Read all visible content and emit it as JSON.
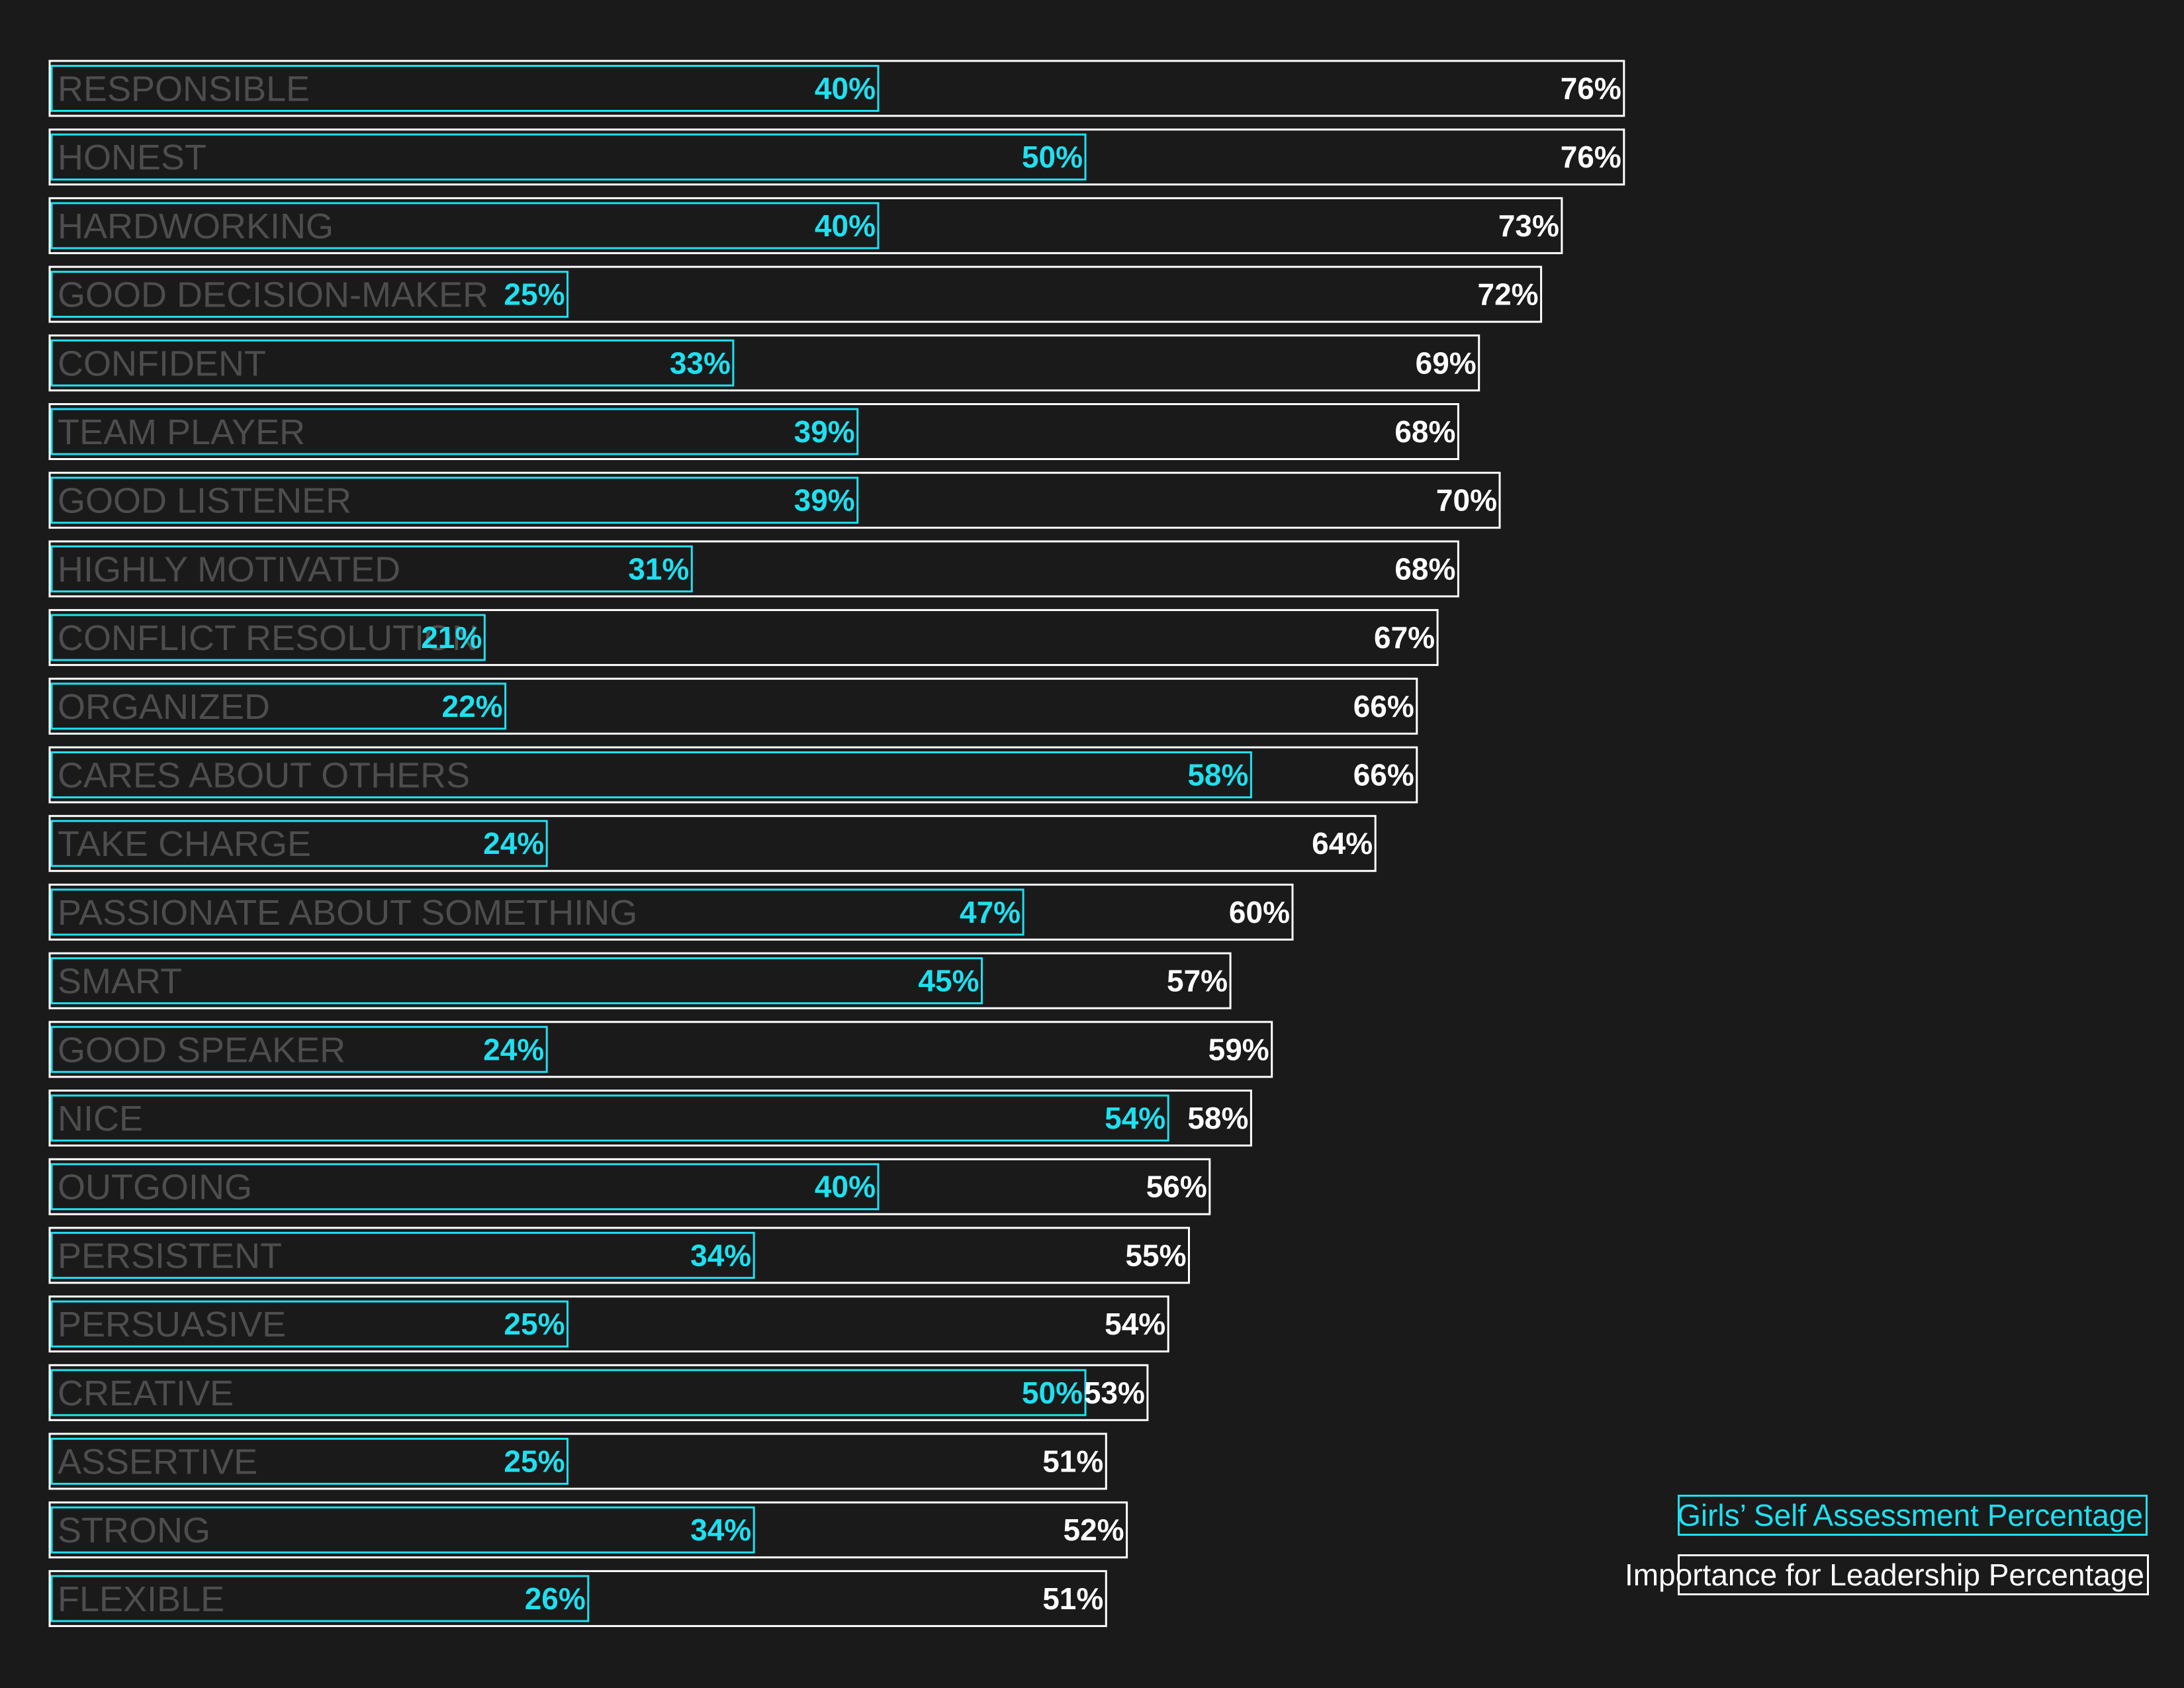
{
  "chart_data": {
    "type": "bar",
    "categories": [
      "RESPONSIBLE",
      "HONEST",
      "HARDWORKING",
      "GOOD DECISION-MAKER",
      "CONFIDENT",
      "TEAM PLAYER",
      "GOOD LISTENER",
      "HIGHLY MOTIVATED",
      "CONFLICT RESOLUTION",
      "ORGANIZED",
      "CARES ABOUT OTHERS",
      "TAKE CHARGE",
      "PASSIONATE ABOUT SOMETHING",
      "SMART",
      "GOOD SPEAKER",
      "NICE",
      "OUTGOING",
      "PERSISTENT",
      "PERSUASIVE",
      "CREATIVE",
      "ASSERTIVE",
      "STRONG",
      "FLEXIBLE"
    ],
    "series": [
      {
        "name": "Importance for Leadership Percentage",
        "color": "#ffffff",
        "values": [
          76,
          76,
          73,
          72,
          69,
          68,
          70,
          68,
          67,
          66,
          66,
          64,
          60,
          57,
          59,
          58,
          56,
          55,
          54,
          53,
          51,
          52,
          51
        ]
      },
      {
        "name": "Girls’ Self Assessment Percentage",
        "color": "#1ee0f0",
        "values": [
          40,
          50,
          40,
          25,
          33,
          39,
          39,
          31,
          21,
          22,
          58,
          24,
          47,
          45,
          24,
          54,
          40,
          34,
          25,
          50,
          25,
          34,
          26
        ]
      }
    ],
    "value_suffix": "%",
    "grid": false,
    "legend_position": "bottom-right",
    "title": "",
    "xlabel": "",
    "ylabel": ""
  },
  "legend": {
    "self_label": "Girls’ Self Assessment Percentage",
    "importance_label": "Importance for Leadership Percentage"
  },
  "colors": {
    "background": "#1a1a1a",
    "self": "#1ee0f0",
    "importance": "#ffffff",
    "category_text": "#4d4d4d"
  }
}
